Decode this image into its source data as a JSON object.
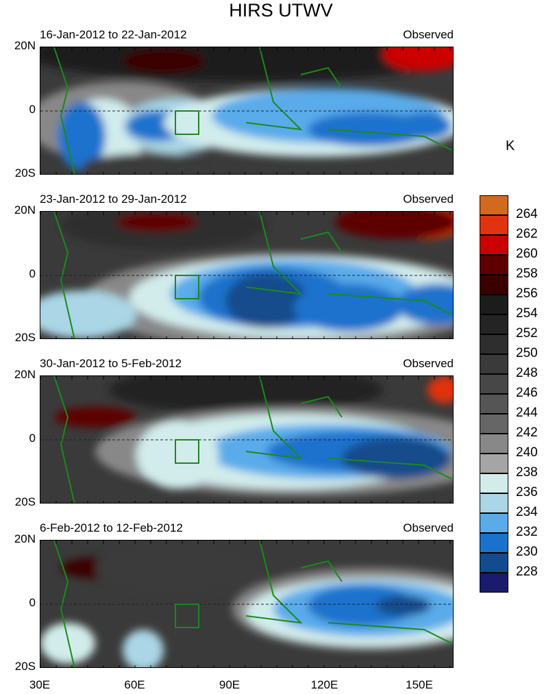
{
  "title": "HIRS UTWV",
  "panels": [
    {
      "date_range": "16-Jan-2012 to 22-Jan-2012",
      "label": "Observed"
    },
    {
      "date_range": "23-Jan-2012 to 29-Jan-2012",
      "label": "Observed"
    },
    {
      "date_range": "30-Jan-2012 to 5-Feb-2012",
      "label": "Observed"
    },
    {
      "date_range": "6-Feb-2012 to 12-Feb-2012",
      "label": "Observed"
    }
  ],
  "y_ticks": [
    "20N",
    "0",
    "20S"
  ],
  "x_ticks": [
    "30E",
    "60E",
    "90E",
    "120E",
    "150E"
  ],
  "colorbar": {
    "unit": "K",
    "labels": [
      "264",
      "262",
      "260",
      "258",
      "256",
      "254",
      "252",
      "250",
      "248",
      "246",
      "244",
      "242",
      "240",
      "238",
      "236",
      "234",
      "232",
      "230",
      "228"
    ],
    "colors": [
      "#cf6a1f",
      "#e0330f",
      "#cc0000",
      "#5e0000",
      "#3a0000",
      "#1c1c1c",
      "#242424",
      "#2e2e2e",
      "#3a3a3a",
      "#474747",
      "#555555",
      "#666666",
      "#888888",
      "#a5a5a5",
      "#d2ecec",
      "#aad6e6",
      "#5aabea",
      "#1a72cc",
      "#124c8c",
      "#1a1a6e"
    ]
  }
}
